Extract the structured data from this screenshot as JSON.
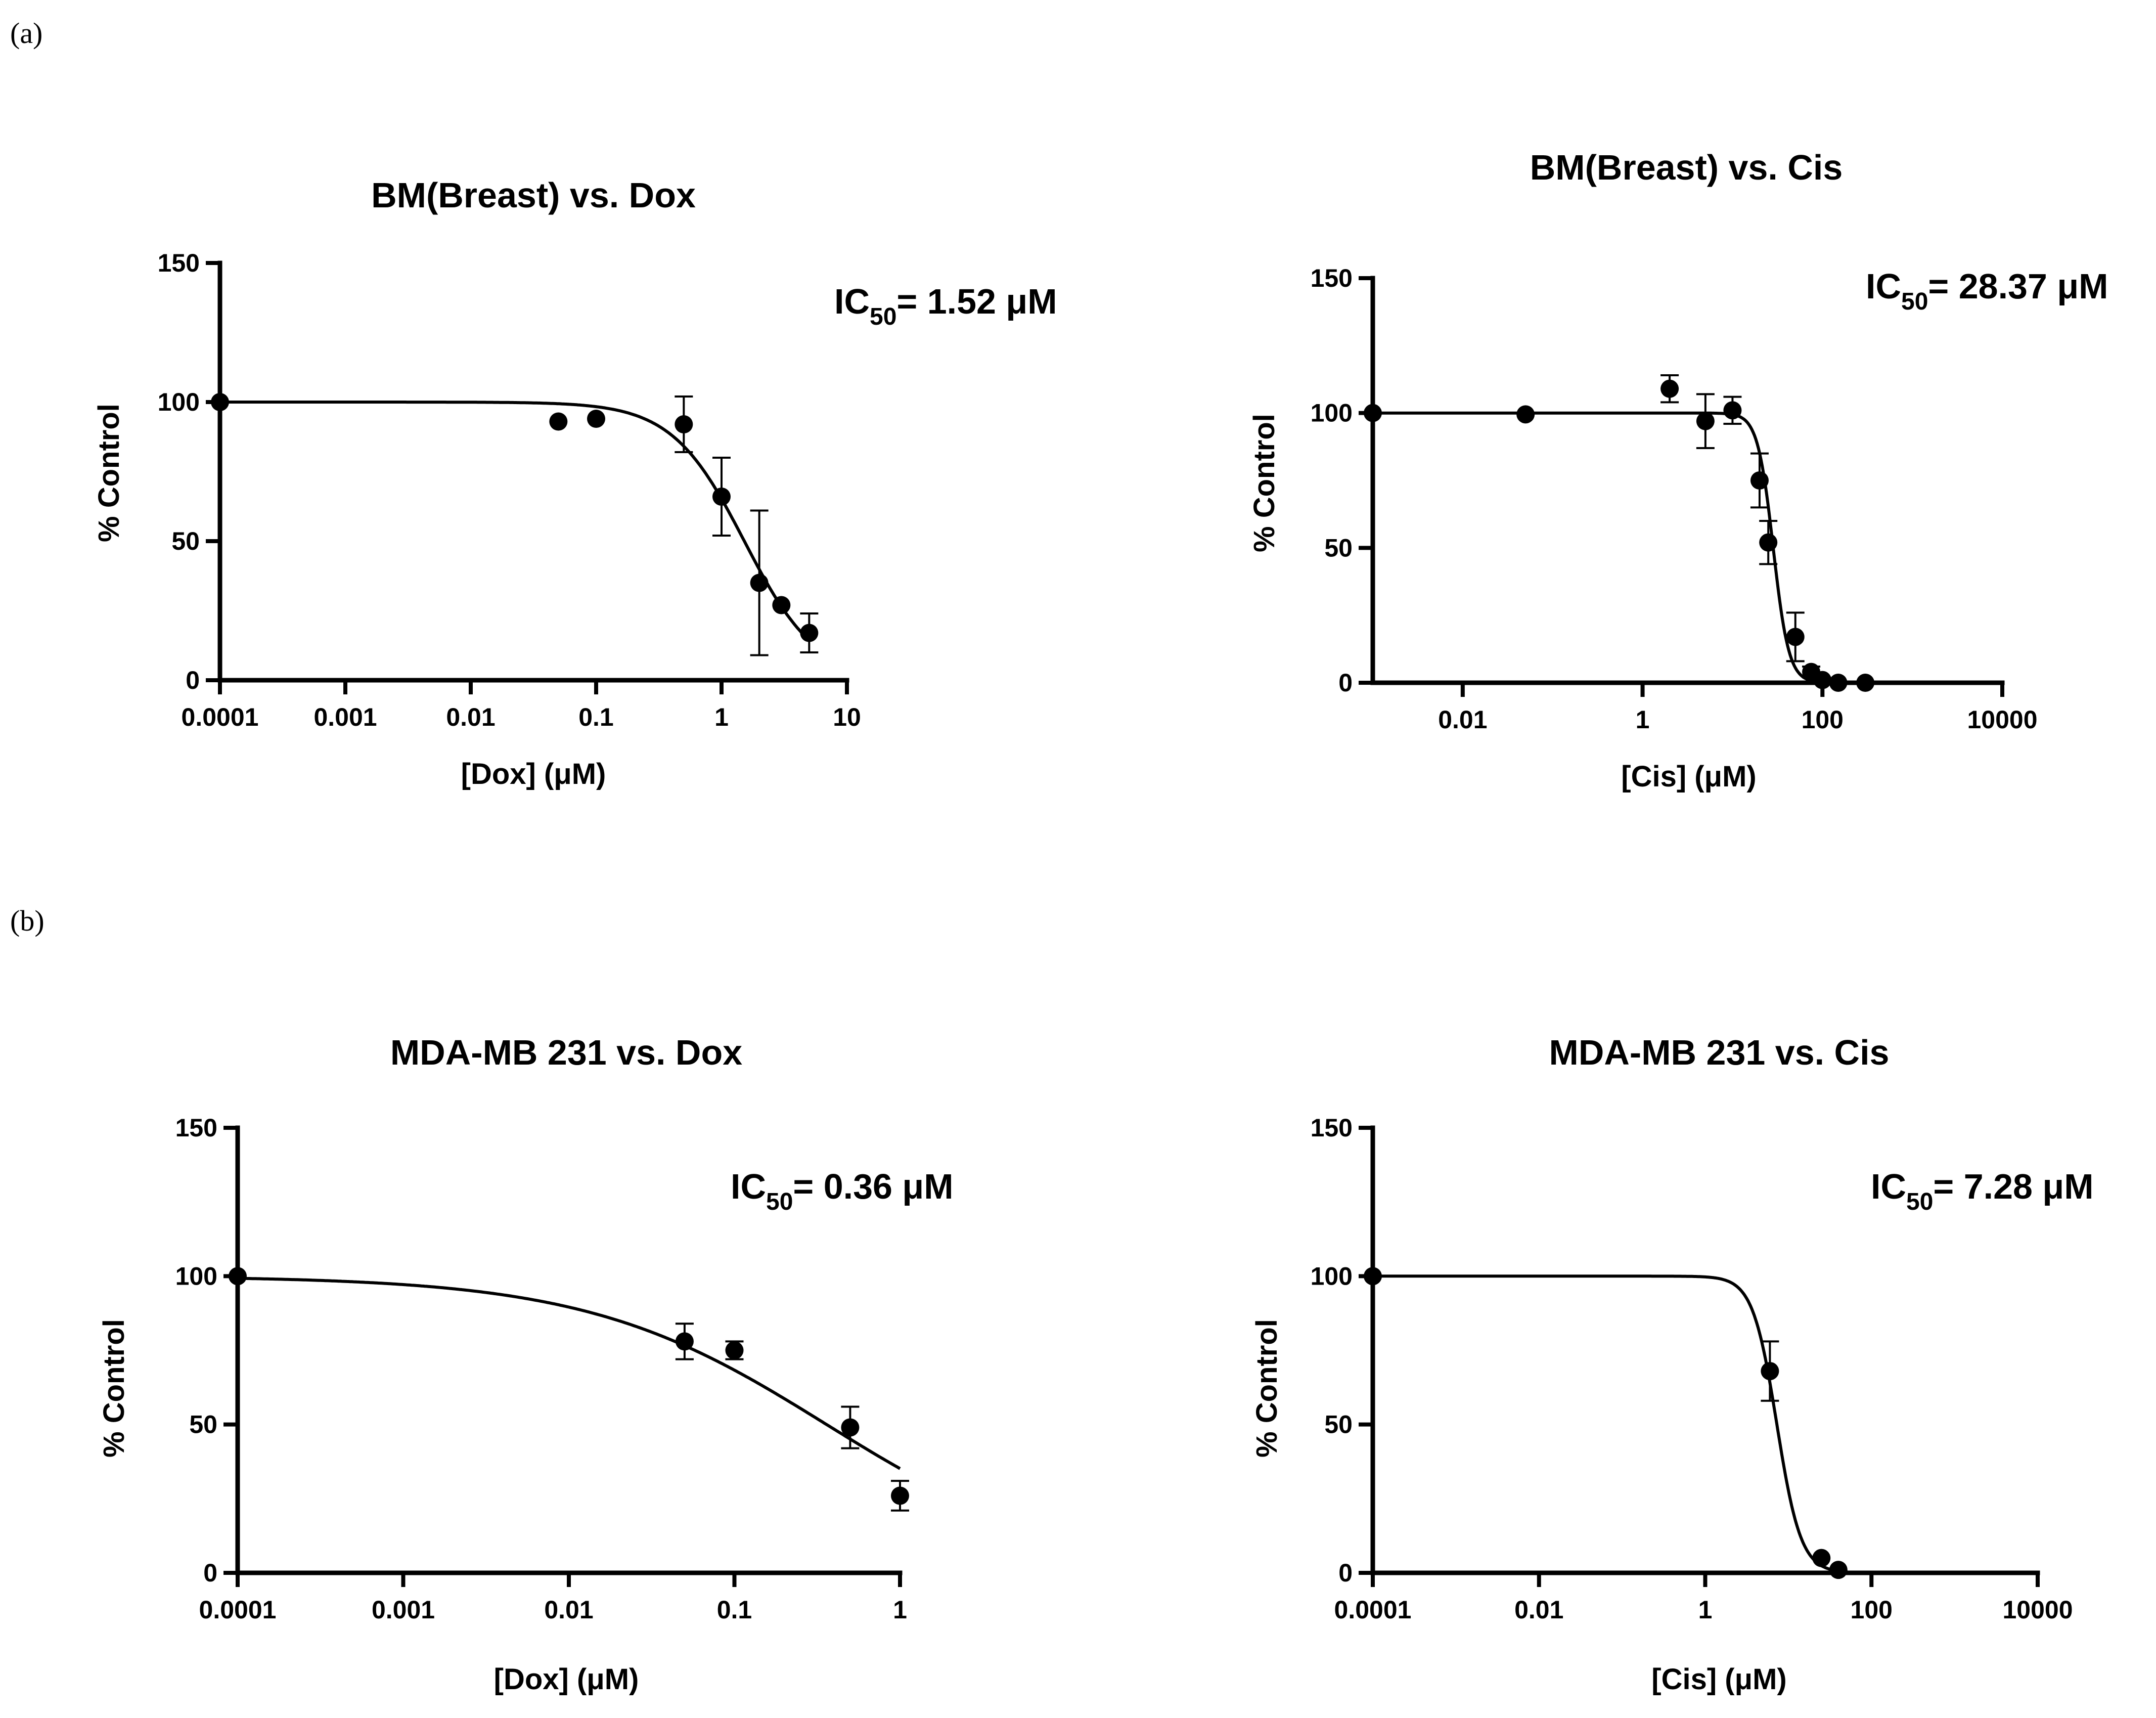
{
  "panel_labels": {
    "a": "(a)",
    "b": "(b)"
  },
  "chart_data": [
    {
      "type": "scatter",
      "title": "BM(Breast) vs. Dox",
      "xlabel": "[Dox] (μM)",
      "ylabel": "% Control",
      "xscale": "log",
      "xlim": [
        0.0001,
        10
      ],
      "ylim": [
        0,
        150
      ],
      "xticks": [
        0.0001,
        0.001,
        0.01,
        0.1,
        1,
        10
      ],
      "xtick_labels": [
        "0.0001",
        "0.001",
        "0.01",
        "0.1",
        "1",
        "10"
      ],
      "yticks": [
        0,
        50,
        100,
        150
      ],
      "ytick_labels": [
        "0",
        "50",
        "100",
        "150"
      ],
      "ic50_prefix": "IC",
      "ic50_sub": "50",
      "ic50_value": "= 1.52 μM",
      "ic50_position": "top-right",
      "fit": {
        "model": "four-parameter logistic",
        "top": 100,
        "bottom": 0,
        "ic50": 1.52,
        "hill": 1.5
      },
      "points": [
        {
          "x": 0.0001,
          "y": 100,
          "err": 0
        },
        {
          "x": 0.05,
          "y": 93,
          "err": 0
        },
        {
          "x": 0.1,
          "y": 94,
          "err": 0
        },
        {
          "x": 0.5,
          "y": 92,
          "err": 10
        },
        {
          "x": 1,
          "y": 66,
          "err": 14
        },
        {
          "x": 2,
          "y": 35,
          "err": 26
        },
        {
          "x": 3,
          "y": 27,
          "err": 0
        },
        {
          "x": 5,
          "y": 17,
          "err": 7
        }
      ]
    },
    {
      "type": "scatter",
      "title": "BM(Breast) vs. Cis",
      "xlabel": "[Cis] (μM)",
      "ylabel": "% Control",
      "xscale": "log",
      "xlim": [
        0.001,
        10000
      ],
      "ylim": [
        0,
        150
      ],
      "xticks": [
        0.01,
        1,
        100,
        10000
      ],
      "xtick_labels": [
        "0.01",
        "1",
        "100",
        "10000"
      ],
      "yticks": [
        0,
        50,
        100,
        150
      ],
      "ytick_labels": [
        "0",
        "50",
        "100",
        "150"
      ],
      "ic50_prefix": "IC",
      "ic50_sub": "50",
      "ic50_value": "= 28.37 μM",
      "ic50_position": "top-right",
      "fit": {
        "model": "four-parameter logistic",
        "top": 100,
        "bottom": 0,
        "ic50": 28.37,
        "hill": 5
      },
      "points": [
        {
          "x": 0.001,
          "y": 100,
          "err": 0
        },
        {
          "x": 0.05,
          "y": 99.5,
          "err": 0
        },
        {
          "x": 2,
          "y": 109,
          "err": 5
        },
        {
          "x": 5,
          "y": 97,
          "err": 10
        },
        {
          "x": 10,
          "y": 101,
          "err": 5
        },
        {
          "x": 20,
          "y": 75,
          "err": 10
        },
        {
          "x": 25,
          "y": 52,
          "err": 8
        },
        {
          "x": 50,
          "y": 17,
          "err": 9
        },
        {
          "x": 75,
          "y": 4,
          "err": 2
        },
        {
          "x": 100,
          "y": 1,
          "err": 0
        },
        {
          "x": 150,
          "y": 0,
          "err": 0
        },
        {
          "x": 300,
          "y": 0,
          "err": 0
        }
      ]
    },
    {
      "type": "scatter",
      "title": "MDA-MB 231 vs. Dox",
      "xlabel": "[Dox] (μM)",
      "ylabel": "% Control",
      "xscale": "log",
      "xlim": [
        0.0001,
        1
      ],
      "ylim": [
        0,
        150
      ],
      "xticks": [
        0.0001,
        0.001,
        0.01,
        0.1,
        1
      ],
      "xtick_labels": [
        "0.0001",
        "0.001",
        "0.01",
        "0.1",
        "1"
      ],
      "yticks": [
        0,
        50,
        100,
        150
      ],
      "ytick_labels": [
        "0",
        "50",
        "100",
        "150"
      ],
      "ic50_prefix": "IC",
      "ic50_sub": "50",
      "ic50_value": "= 0.36 μM",
      "ic50_position": "top-right",
      "fit": {
        "model": "four-parameter logistic",
        "top": 100,
        "bottom": 0,
        "ic50": 0.36,
        "hill": 0.6
      },
      "points": [
        {
          "x": 0.0001,
          "y": 100,
          "err": 0
        },
        {
          "x": 0.05,
          "y": 78,
          "err": 6
        },
        {
          "x": 0.1,
          "y": 75,
          "err": 3
        },
        {
          "x": 0.5,
          "y": 49,
          "err": 7
        },
        {
          "x": 1,
          "y": 26,
          "err": 5
        }
      ]
    },
    {
      "type": "scatter",
      "title": "MDA-MB 231 vs. Cis",
      "xlabel": "[Cis] (μM)",
      "ylabel": "% Control",
      "xscale": "log",
      "xlim": [
        0.0001,
        10000
      ],
      "ylim": [
        0,
        150
      ],
      "xticks": [
        0.0001,
        0.01,
        1,
        100,
        10000
      ],
      "xtick_labels": [
        "0.0001",
        "0.01",
        "1",
        "100",
        "10000"
      ],
      "yticks": [
        0,
        50,
        100,
        150
      ],
      "ytick_labels": [
        "0",
        "50",
        "100",
        "150"
      ],
      "ic50_prefix": "IC",
      "ic50_sub": "50",
      "ic50_value": "= 7.28 μM",
      "ic50_position": "top-right",
      "fit": {
        "model": "four-parameter logistic",
        "top": 100,
        "bottom": 0,
        "ic50": 7.28,
        "hill": 3
      },
      "points": [
        {
          "x": 0.0001,
          "y": 100,
          "err": 0
        },
        {
          "x": 6,
          "y": 68,
          "err": 10
        },
        {
          "x": 25,
          "y": 5,
          "err": 0
        },
        {
          "x": 40,
          "y": 1,
          "err": 0
        }
      ]
    }
  ]
}
